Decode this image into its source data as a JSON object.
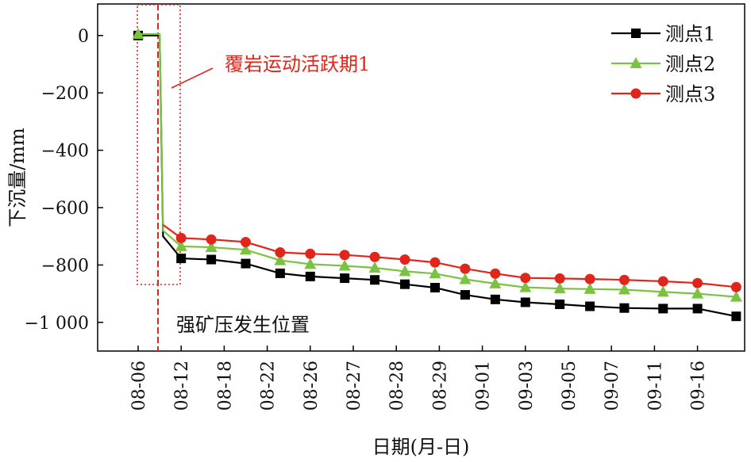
{
  "chart_data": {
    "type": "line",
    "xlabel": "日期(月-日)",
    "ylabel": "下沉量/mm",
    "ylim": [
      -1100,
      110
    ],
    "yticks": [
      0,
      -200,
      -400,
      -600,
      -800,
      -1000
    ],
    "ytick_labels": [
      "0",
      "−200",
      "−400",
      "−600",
      "−800",
      "−1 000"
    ],
    "categories": [
      "08-06",
      "08-12",
      "08-18",
      "08-22",
      "08-26",
      "08-27",
      "08-28",
      "08-29",
      "09-01",
      "09-03",
      "09-05",
      "09-07",
      "09-11",
      "09-16"
    ],
    "legend_position": "top-right",
    "series": [
      {
        "name": "测点1",
        "color": "#000000",
        "marker": "square",
        "points": [
          [
            0.0,
            0
          ],
          [
            0.5,
            0
          ],
          [
            0.58,
            -700
          ],
          [
            1.0,
            -777
          ],
          [
            1.7,
            -781
          ],
          [
            2.5,
            -795
          ],
          [
            3.3,
            -829
          ],
          [
            4.0,
            -840
          ],
          [
            4.8,
            -846
          ],
          [
            5.5,
            -852
          ],
          [
            6.2,
            -867
          ],
          [
            6.9,
            -879
          ],
          [
            7.6,
            -904
          ],
          [
            8.3,
            -920
          ],
          [
            9.0,
            -930
          ],
          [
            9.8,
            -937
          ],
          [
            10.5,
            -944
          ],
          [
            11.3,
            -950
          ],
          [
            12.2,
            -952
          ],
          [
            13.0,
            -952
          ],
          [
            13.9,
            -979
          ]
        ]
      },
      {
        "name": "测点2",
        "color": "#7cc242",
        "marker": "triangle",
        "points": [
          [
            0.0,
            5
          ],
          [
            0.5,
            5
          ],
          [
            0.58,
            -680
          ],
          [
            1.0,
            -735
          ],
          [
            1.7,
            -738
          ],
          [
            2.5,
            -747
          ],
          [
            3.3,
            -784
          ],
          [
            4.0,
            -797
          ],
          [
            4.8,
            -803
          ],
          [
            5.5,
            -810
          ],
          [
            6.2,
            -822
          ],
          [
            6.9,
            -830
          ],
          [
            7.6,
            -850
          ],
          [
            8.3,
            -865
          ],
          [
            9.0,
            -878
          ],
          [
            9.8,
            -882
          ],
          [
            10.5,
            -884
          ],
          [
            11.3,
            -886
          ],
          [
            12.2,
            -894
          ],
          [
            13.0,
            -900
          ],
          [
            13.9,
            -911
          ]
        ]
      },
      {
        "name": "测点3",
        "color": "#e0251b",
        "marker": "circle",
        "points": [
          [
            0.58,
            -660
          ],
          [
            1.0,
            -706
          ],
          [
            1.7,
            -711
          ],
          [
            2.5,
            -720
          ],
          [
            3.3,
            -756
          ],
          [
            4.0,
            -761
          ],
          [
            4.8,
            -765
          ],
          [
            5.5,
            -772
          ],
          [
            6.2,
            -781
          ],
          [
            6.9,
            -791
          ],
          [
            7.6,
            -813
          ],
          [
            8.3,
            -830
          ],
          [
            9.0,
            -845
          ],
          [
            9.8,
            -847
          ],
          [
            10.5,
            -849
          ],
          [
            11.3,
            -852
          ],
          [
            12.2,
            -857
          ],
          [
            13.0,
            -863
          ],
          [
            13.9,
            -877
          ]
        ]
      }
    ],
    "annotations": {
      "active_period_label": "覆岩运动活跃期1",
      "pressure_label": "强矿压发生位置",
      "annotation_color": "#e0251b"
    }
  }
}
